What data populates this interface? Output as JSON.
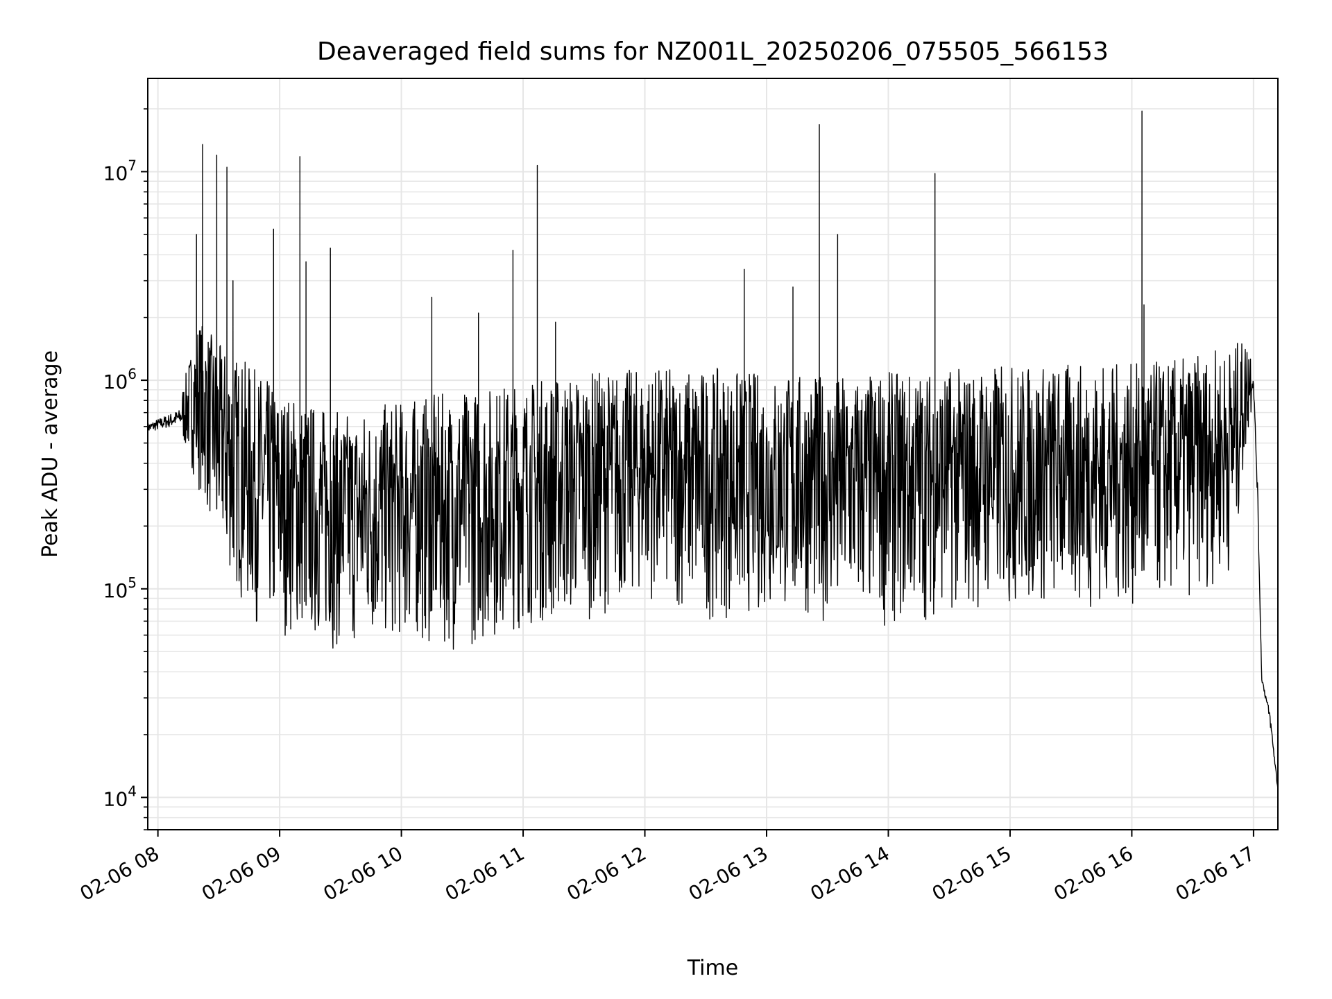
{
  "chart_data": {
    "type": "line",
    "title": "Deaveraged field sums for NZ001L_20250206_075505_566153",
    "xlabel": "Time",
    "ylabel": "Peak ADU - average",
    "yscale": "log",
    "ylim": [
      7000,
      28000000
    ],
    "xlim": [
      "2025-02-06 07:55",
      "2025-02-06 17:12"
    ],
    "grid": true,
    "x_ticks": [
      "02-06 08",
      "02-06 09",
      "02-06 10",
      "02-06 11",
      "02-06 12",
      "02-06 13",
      "02-06 14",
      "02-06 15",
      "02-06 16",
      "02-06 17"
    ],
    "y_ticks": [
      {
        "value": 10000,
        "base": "10",
        "exp": "4"
      },
      {
        "value": 100000,
        "base": "10",
        "exp": "5"
      },
      {
        "value": 1000000,
        "base": "10",
        "exp": "6"
      },
      {
        "value": 10000000,
        "base": "10",
        "exp": "7"
      }
    ],
    "line_color": "#000000",
    "series": [
      {
        "x": [
          "2025-02-06 07:55",
          "2025-02-06 08:12",
          "2025-02-06 08:20",
          "2025-02-06 08:30",
          "2025-02-06 08:45",
          "2025-02-06 09:00",
          "2025-02-06 09:15",
          "2025-02-06 09:30",
          "2025-02-06 10:00",
          "2025-02-06 10:30",
          "2025-02-06 11:00",
          "2025-02-06 11:30",
          "2025-02-06 12:00",
          "2025-02-06 12:30",
          "2025-02-06 13:00",
          "2025-02-06 13:30",
          "2025-02-06 14:00",
          "2025-02-06 14:30",
          "2025-02-06 15:00",
          "2025-02-06 15:30",
          "2025-02-06 16:00",
          "2025-02-06 16:30",
          "2025-02-06 16:50",
          "2025-02-06 16:58",
          "2025-02-06 17:00",
          "2025-02-06 17:02",
          "2025-02-06 17:04",
          "2025-02-06 17:08",
          "2025-02-06 17:12"
        ],
        "low": [
          500000,
          500000,
          300000,
          150000,
          70000,
          60000,
          55000,
          50000,
          55000,
          50000,
          65000,
          70000,
          90000,
          70000,
          75000,
          70000,
          65000,
          75000,
          80000,
          80000,
          80000,
          90000,
          120000,
          600000,
          800000,
          200000,
          35000,
          20000,
          10000
        ],
        "high": [
          700000,
          900000,
          2000000,
          1500000,
          1200000,
          900000,
          800000,
          700000,
          800000,
          900000,
          1000000,
          1100000,
          1150000,
          1150000,
          1100000,
          1050000,
          1100000,
          1150000,
          1200000,
          1200000,
          1200000,
          1300000,
          1500000,
          1600000,
          1200000,
          400000,
          40000,
          30000,
          12000
        ],
        "spikes": [
          {
            "x": "2025-02-06 08:19",
            "y": 5000000
          },
          {
            "x": "2025-02-06 08:22",
            "y": 13500000
          },
          {
            "x": "2025-02-06 08:29",
            "y": 12000000
          },
          {
            "x": "2025-02-06 08:34",
            "y": 10500000
          },
          {
            "x": "2025-02-06 08:37",
            "y": 3000000
          },
          {
            "x": "2025-02-06 08:57",
            "y": 5300000
          },
          {
            "x": "2025-02-06 09:10",
            "y": 11800000
          },
          {
            "x": "2025-02-06 09:13",
            "y": 3700000
          },
          {
            "x": "2025-02-06 09:25",
            "y": 4300000
          },
          {
            "x": "2025-02-06 10:15",
            "y": 2500000
          },
          {
            "x": "2025-02-06 10:38",
            "y": 2100000
          },
          {
            "x": "2025-02-06 10:55",
            "y": 4200000
          },
          {
            "x": "2025-02-06 11:07",
            "y": 10700000
          },
          {
            "x": "2025-02-06 11:16",
            "y": 1900000
          },
          {
            "x": "2025-02-06 12:49",
            "y": 3400000
          },
          {
            "x": "2025-02-06 13:13",
            "y": 2800000
          },
          {
            "x": "2025-02-06 13:26",
            "y": 16800000
          },
          {
            "x": "2025-02-06 13:35",
            "y": 5000000
          },
          {
            "x": "2025-02-06 14:23",
            "y": 9800000
          },
          {
            "x": "2025-02-06 16:05",
            "y": 19500000
          },
          {
            "x": "2025-02-06 16:06",
            "y": 2300000
          }
        ]
      }
    ]
  }
}
